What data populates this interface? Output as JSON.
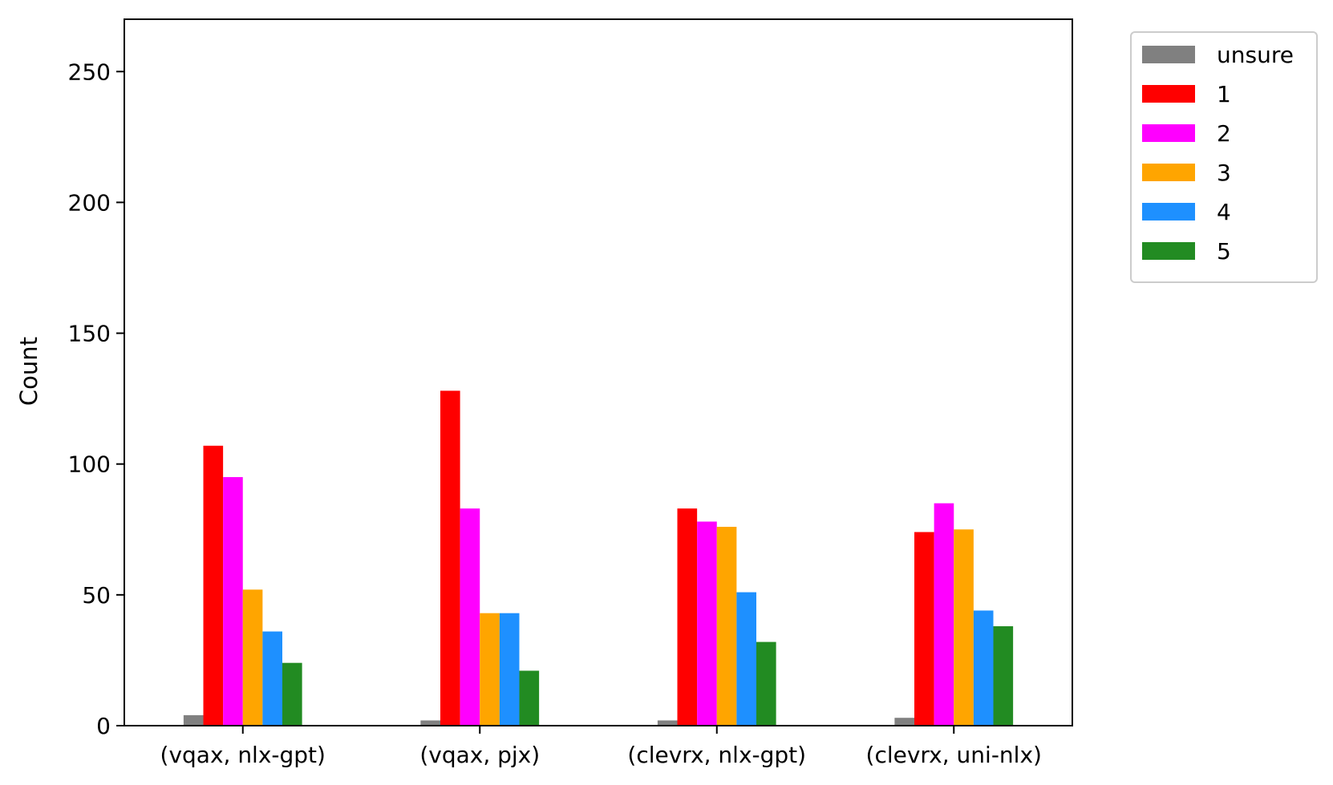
{
  "chart_data": {
    "type": "bar",
    "title": "",
    "xlabel": "",
    "ylabel": "Count",
    "ylim": [
      0,
      270
    ],
    "yticks": [
      0,
      50,
      100,
      150,
      200,
      250
    ],
    "grid": false,
    "legend_position": "outside-top-right",
    "categories": [
      "(vqax, nlx-gpt)",
      "(vqax, pjx)",
      "(clevrx, nlx-gpt)",
      "(clevrx, uni-nlx)"
    ],
    "series": [
      {
        "name": "unsure",
        "color": "#808080",
        "values": [
          4,
          2,
          2,
          3
        ]
      },
      {
        "name": "1",
        "color": "#ff0000",
        "values": [
          107,
          128,
          83,
          74
        ]
      },
      {
        "name": "2",
        "color": "#ff00ff",
        "values": [
          95,
          83,
          78,
          85
        ]
      },
      {
        "name": "3",
        "color": "#ffa500",
        "values": [
          52,
          43,
          76,
          75
        ]
      },
      {
        "name": "4",
        "color": "#1e90ff",
        "values": [
          36,
          43,
          51,
          44
        ]
      },
      {
        "name": "5",
        "color": "#228b22",
        "values": [
          24,
          21,
          32,
          38
        ]
      }
    ]
  }
}
